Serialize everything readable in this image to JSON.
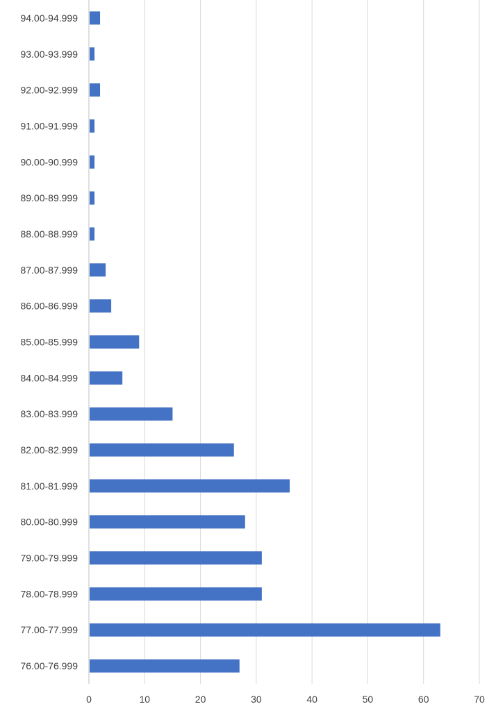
{
  "chart_data": {
    "type": "bar",
    "orientation": "horizontal",
    "categories": [
      "94.00-94.999",
      "93.00-93.999",
      "92.00-92.999",
      "91.00-91.999",
      "90.00-90.999",
      "89.00-89.999",
      "88.00-88.999",
      "87.00-87.999",
      "86.00-86.999",
      "85.00-85.999",
      "84.00-84.999",
      "83.00-83.999",
      "82.00-82.999",
      "81.00-81.999",
      "80.00-80.999",
      "79.00-79.999",
      "78.00-78.999",
      "77.00-77.999",
      "76.00-76.999"
    ],
    "values": [
      2,
      1,
      2,
      1,
      1,
      1,
      1,
      3,
      4,
      9,
      6,
      15,
      26,
      36,
      28,
      31,
      31,
      63,
      27
    ],
    "xlim": [
      0,
      70
    ],
    "xticks": [
      0,
      10,
      20,
      30,
      40,
      50,
      60,
      70
    ],
    "grid": "vertical",
    "legend": "none",
    "bar_color": "#4472c4",
    "title": "",
    "xlabel": "",
    "ylabel": ""
  }
}
